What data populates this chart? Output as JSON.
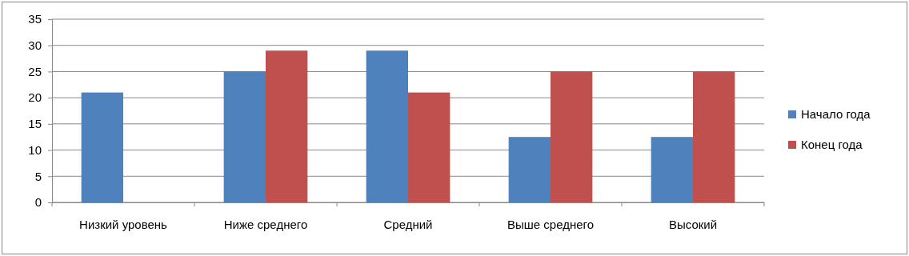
{
  "chart_data": {
    "type": "bar",
    "categories": [
      "Низкий уровень",
      "Ниже среднего",
      "Средний",
      "Выше среднего",
      "Высокий"
    ],
    "series": [
      {
        "name": "Начало года",
        "color": "#4f81bd",
        "values": [
          21,
          25,
          29,
          12.5,
          12.5
        ]
      },
      {
        "name": "Конец года",
        "color": "#c0504d",
        "values": [
          0,
          29,
          21,
          25,
          25
        ]
      }
    ],
    "ylim": [
      0,
      35
    ],
    "yticks": [
      0,
      5,
      10,
      15,
      20,
      25,
      30,
      35
    ],
    "grid": "y",
    "legend": "right"
  }
}
